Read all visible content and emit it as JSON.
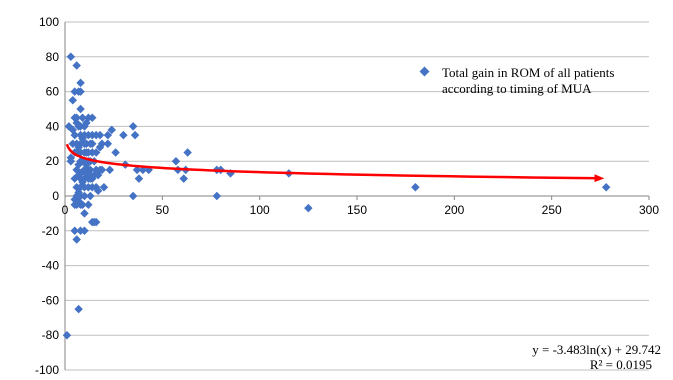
{
  "chart_data": {
    "type": "scatter",
    "title": "",
    "xlabel": "",
    "ylabel": "",
    "xlim": [
      0,
      300
    ],
    "ylim": [
      -100,
      100
    ],
    "x_ticks": [
      0,
      50,
      100,
      150,
      200,
      250,
      300
    ],
    "y_ticks": [
      100,
      80,
      60,
      40,
      20,
      0,
      -20,
      -40,
      -60,
      -80,
      -100
    ],
    "grid": "horizontal",
    "legend_position": "top-right",
    "colors": {
      "marker": "#4472c4",
      "trendline": "#ff0000",
      "grid": "#bfbfbf",
      "axis": "#868686"
    },
    "series": [
      {
        "name": "Total gain in ROM of all patients according to timing of MUA",
        "marker": "diamond",
        "points": [
          [
            1,
            -80
          ],
          [
            2,
            40
          ],
          [
            3,
            80
          ],
          [
            3,
            22
          ],
          [
            3,
            20
          ],
          [
            4,
            55
          ],
          [
            4,
            30
          ],
          [
            4,
            38
          ],
          [
            5,
            60
          ],
          [
            5,
            45
          ],
          [
            5,
            35
          ],
          [
            5,
            25
          ],
          [
            5,
            10
          ],
          [
            5,
            -2
          ],
          [
            5,
            -5
          ],
          [
            5,
            -20
          ],
          [
            6,
            75
          ],
          [
            6,
            45
          ],
          [
            6,
            42
          ],
          [
            6,
            30
          ],
          [
            6,
            25
          ],
          [
            6,
            15
          ],
          [
            6,
            5
          ],
          [
            6,
            0
          ],
          [
            6,
            -5
          ],
          [
            6,
            -25
          ],
          [
            7,
            60
          ],
          [
            7,
            40
          ],
          [
            7,
            28
          ],
          [
            7,
            18
          ],
          [
            7,
            12
          ],
          [
            7,
            2
          ],
          [
            7,
            -3
          ],
          [
            7,
            -65
          ],
          [
            8,
            65
          ],
          [
            8,
            60
          ],
          [
            8,
            50
          ],
          [
            8,
            40
          ],
          [
            8,
            35
          ],
          [
            8,
            30
          ],
          [
            8,
            25
          ],
          [
            8,
            20
          ],
          [
            8,
            13
          ],
          [
            8,
            10
          ],
          [
            8,
            5
          ],
          [
            8,
            0
          ],
          [
            8,
            -5
          ],
          [
            8,
            -20
          ],
          [
            9,
            45
          ],
          [
            9,
            33
          ],
          [
            9,
            20
          ],
          [
            9,
            14
          ],
          [
            9,
            8
          ],
          [
            9,
            -5
          ],
          [
            10,
            40
          ],
          [
            10,
            35
          ],
          [
            10,
            30
          ],
          [
            10,
            25
          ],
          [
            10,
            20
          ],
          [
            10,
            15
          ],
          [
            10,
            10
          ],
          [
            10,
            5
          ],
          [
            10,
            0
          ],
          [
            10,
            -10
          ],
          [
            10,
            -20
          ],
          [
            11,
            42
          ],
          [
            11,
            30
          ],
          [
            11,
            25
          ],
          [
            11,
            18
          ],
          [
            11,
            13
          ],
          [
            12,
            45
          ],
          [
            12,
            35
          ],
          [
            12,
            25
          ],
          [
            12,
            20
          ],
          [
            12,
            15
          ],
          [
            12,
            10
          ],
          [
            12,
            5
          ],
          [
            12,
            -5
          ],
          [
            13,
            30
          ],
          [
            13,
            20
          ],
          [
            13,
            15
          ],
          [
            13,
            12
          ],
          [
            13,
            10
          ],
          [
            13,
            0
          ],
          [
            14,
            45
          ],
          [
            14,
            35
          ],
          [
            14,
            30
          ],
          [
            14,
            25
          ],
          [
            14,
            10
          ],
          [
            14,
            5
          ],
          [
            14,
            -15
          ],
          [
            15,
            20
          ],
          [
            15,
            12
          ],
          [
            15,
            -15
          ],
          [
            16,
            35
          ],
          [
            16,
            25
          ],
          [
            16,
            15
          ],
          [
            16,
            5
          ],
          [
            16,
            -15
          ],
          [
            17,
            12
          ],
          [
            17,
            3
          ],
          [
            18,
            35
          ],
          [
            18,
            28
          ],
          [
            18,
            15
          ],
          [
            19,
            30
          ],
          [
            19,
            15
          ],
          [
            20,
            5
          ],
          [
            22,
            30
          ],
          [
            22,
            35
          ],
          [
            23,
            15
          ],
          [
            24,
            38
          ],
          [
            26,
            25
          ],
          [
            30,
            35
          ],
          [
            31,
            18
          ],
          [
            35,
            40
          ],
          [
            35,
            0
          ],
          [
            36,
            35
          ],
          [
            37,
            15
          ],
          [
            38,
            10
          ],
          [
            40,
            15
          ],
          [
            43,
            15
          ],
          [
            57,
            20
          ],
          [
            58,
            15
          ],
          [
            61,
            10
          ],
          [
            62,
            15
          ],
          [
            63,
            25
          ],
          [
            78,
            15
          ],
          [
            78,
            0
          ],
          [
            80,
            15
          ],
          [
            85,
            13
          ],
          [
            115,
            13
          ],
          [
            125,
            -7
          ],
          [
            180,
            5
          ],
          [
            278,
            5
          ]
        ]
      }
    ],
    "trendline": {
      "type": "log",
      "a": -3.483,
      "b": 29.742,
      "x_range": [
        1,
        275
      ],
      "equation_text": "y = -3.483ln(x) + 29.742",
      "r2_text": "R² = 0.0195"
    }
  }
}
